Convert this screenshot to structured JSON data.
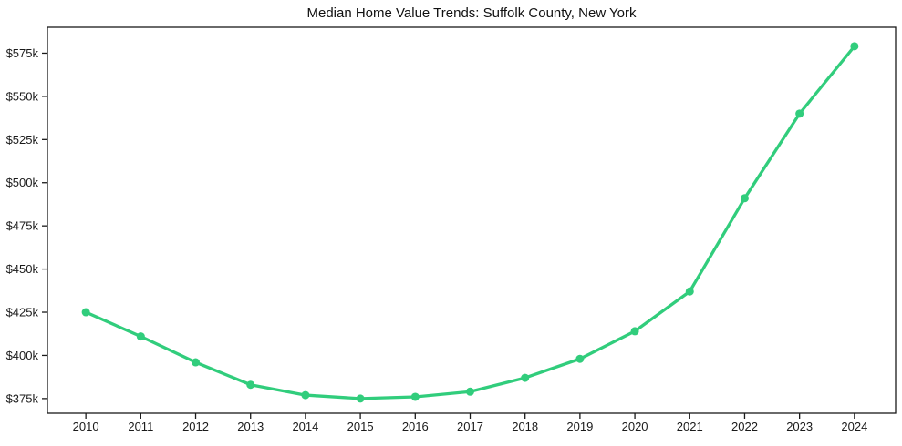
{
  "title": "Median Home Value Trends: Suffolk County, New York",
  "colors": {
    "line": "#31cd7c",
    "marker": "#31cd7c",
    "axis": "#1a1a1a",
    "text": "#1a1a1a",
    "background": "#ffffff"
  },
  "chart_data": {
    "type": "line",
    "title": "Median Home Value Trends: Suffolk County, New York",
    "unit": "USD thousands",
    "x": [
      2010,
      2011,
      2012,
      2013,
      2014,
      2015,
      2016,
      2017,
      2018,
      2019,
      2020,
      2021,
      2022,
      2023,
      2024
    ],
    "series": [
      {
        "name": "Median Home Value",
        "values": [
          425,
          411,
          396,
          383,
          377,
          375,
          376,
          379,
          387,
          398,
          414,
          437,
          491,
          540,
          579
        ]
      }
    ],
    "xlabel": "",
    "ylabel": "",
    "xtick_labels": [
      "2010",
      "2011",
      "2012",
      "2013",
      "2014",
      "2015",
      "2016",
      "2017",
      "2018",
      "2019",
      "2020",
      "2021",
      "2022",
      "2023",
      "2024"
    ],
    "ytick_values": [
      375,
      400,
      425,
      450,
      475,
      500,
      525,
      550,
      575
    ],
    "ytick_labels": [
      "$375k",
      "$400k",
      "$425k",
      "$450k",
      "$475k",
      "$500k",
      "$525k",
      "$550k",
      "$575k"
    ],
    "xlim": [
      2009.3,
      2024.75
    ],
    "ylim": [
      366.5,
      590
    ],
    "grid": false,
    "legend": "none",
    "marker": "circle",
    "line_color": "#31cd7c"
  }
}
